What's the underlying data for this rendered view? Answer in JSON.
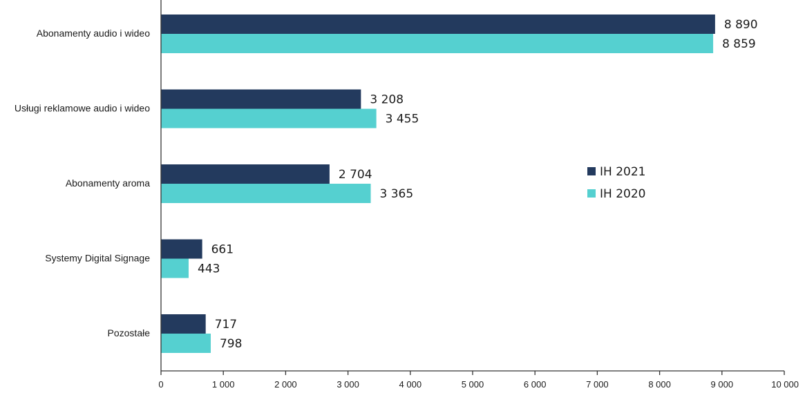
{
  "chart_data": {
    "type": "bar",
    "orientation": "horizontal",
    "categories": [
      "Abonamenty audio i wideo",
      "Usługi reklamowe audio i wideo",
      "Abonamenty aroma",
      "Systemy Digital Signage",
      "Pozostałe"
    ],
    "series": [
      {
        "name": "IH 2021",
        "color": "#233a5e",
        "values": [
          8890,
          3208,
          2704,
          661,
          717
        ],
        "labels": [
          "8 890",
          "3 208",
          "2 704",
          "661",
          "717"
        ]
      },
      {
        "name": "IH 2020",
        "color": "#55d0d0",
        "values": [
          8859,
          3455,
          3365,
          443,
          798
        ],
        "labels": [
          "8 859",
          "3 455",
          "3 365",
          "443",
          "798"
        ]
      }
    ],
    "xlim": [
      0,
      10000
    ],
    "xticks": [
      0,
      1000,
      2000,
      3000,
      4000,
      5000,
      6000,
      7000,
      8000,
      9000,
      10000
    ],
    "xtick_labels": [
      "0",
      "1 000",
      "2 000",
      "3 000",
      "4 000",
      "5 000",
      "6 000",
      "7 000",
      "8 000",
      "9 000",
      "10 000"
    ],
    "title": "",
    "xlabel": "",
    "ylabel": "",
    "grid": false,
    "legend_position": "right",
    "axis_color": "#333333"
  }
}
